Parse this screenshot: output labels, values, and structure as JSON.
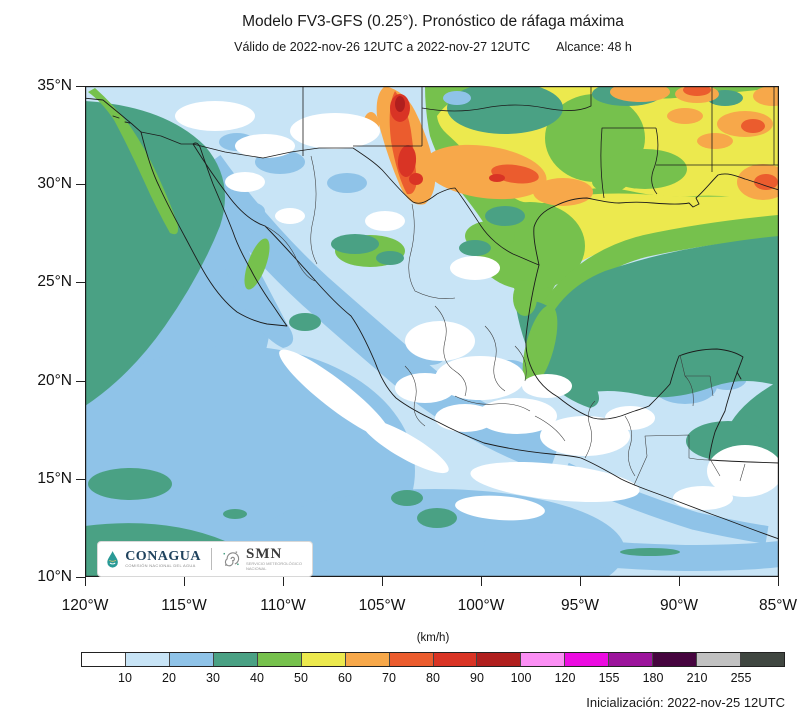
{
  "header": {
    "title": "Modelo FV3-GFS (0.25°). Pronóstico de ráfaga máxima",
    "valid": "Válido de 2022-nov-26 12UTC a 2022-nov-27 12UTC",
    "reach": "Alcance: 48 h"
  },
  "axes": {
    "y_labels": [
      "35°N",
      "30°N",
      "25°N",
      "20°N",
      "15°N",
      "10°N"
    ],
    "x_labels": [
      "120°W",
      "115°W",
      "110°W",
      "105°W",
      "100°W",
      "95°W",
      "90°W",
      "85°W"
    ]
  },
  "colorbar": {
    "units": "(km/h)",
    "ticks": [
      "10",
      "20",
      "30",
      "40",
      "50",
      "60",
      "70",
      "80",
      "90",
      "100",
      "120",
      "155",
      "180",
      "210",
      "255"
    ],
    "colors": [
      "#ffffff",
      "#c8e4f6",
      "#8fc3e8",
      "#4aa184",
      "#76c14d",
      "#ece94e",
      "#f7a84a",
      "#eb5c2e",
      "#d93425",
      "#b01f1e",
      "#fb8ff4",
      "#ec0ce1",
      "#9c149c",
      "#46053f",
      "#c1c1c1",
      "#404741"
    ]
  },
  "footer": {
    "init": "Inicialización: 2022-nov-25 12UTC"
  },
  "logos": {
    "conagua": "CONAGUA",
    "conagua_sub": "COMISIÓN NACIONAL DEL AGUA",
    "conagua_icon": "water-drop-icon",
    "smn": "SMN",
    "smn_sub": "SERVICIO METEOROLÓGICO NACIONAL",
    "smn_icon": "smn-spiral-icon"
  }
}
